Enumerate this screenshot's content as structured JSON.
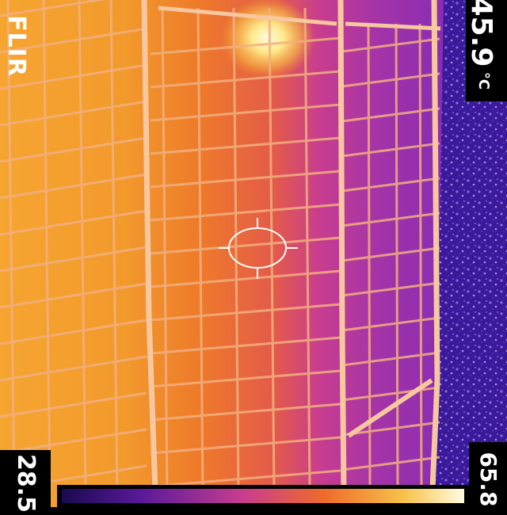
{
  "brand": "FLIR",
  "spot_temperature": "45.9",
  "unit": "°C",
  "scale_min": "28.5",
  "scale_max": "65.8",
  "colors": {
    "cold": "#3a1a9a",
    "mid": "#d03a86",
    "warm": "#e86a2a",
    "hot": "#f7c24a",
    "hotspot": "#fffbe0",
    "grid_line": "#f2b080",
    "crosshair": "#ffffff"
  },
  "palette": "iron"
}
